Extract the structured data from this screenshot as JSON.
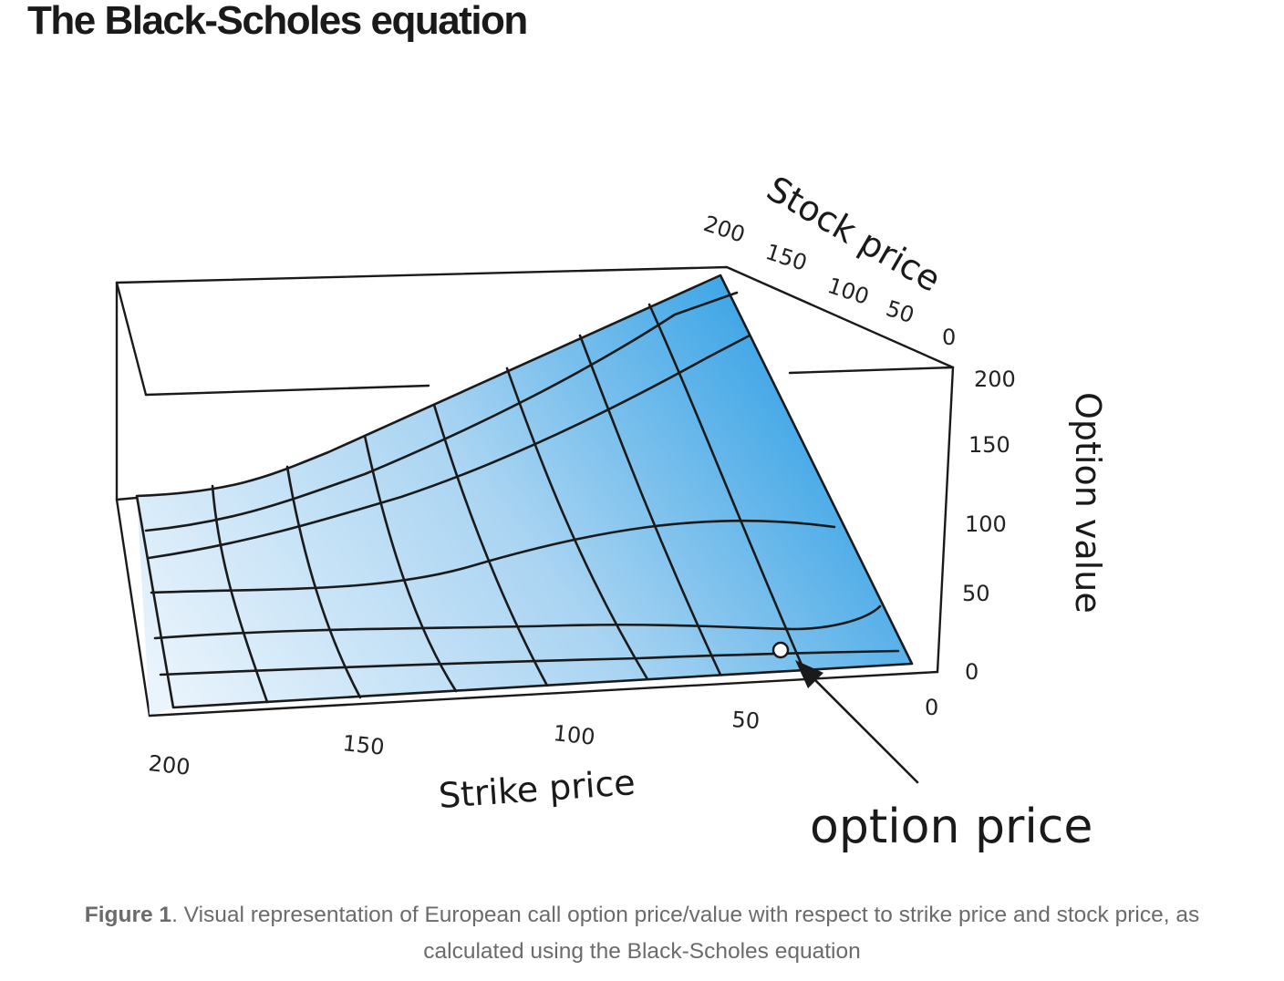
{
  "heading": "The Black-Scholes equation",
  "figure": {
    "axes": {
      "stock_price": {
        "label": "Stock price",
        "ticks": [
          "200",
          "150",
          "100",
          "50",
          "0"
        ]
      },
      "option_value": {
        "label": "Option value",
        "ticks": [
          "200",
          "150",
          "100",
          "50",
          "0"
        ]
      },
      "strike_price": {
        "label": "Strike price",
        "ticks": [
          "200",
          "150",
          "100",
          "50",
          "0"
        ]
      }
    },
    "callout": "option price",
    "colors": {
      "surface_light": "#eaf4fc",
      "surface_dark": "#3fa6e6",
      "ink": "#1a1a1a"
    }
  },
  "caption": {
    "label": "Figure 1",
    "text": ". Visual representation of European call option price/value with respect to strike price and stock price, as calculated using the Black-Scholes equation"
  }
}
